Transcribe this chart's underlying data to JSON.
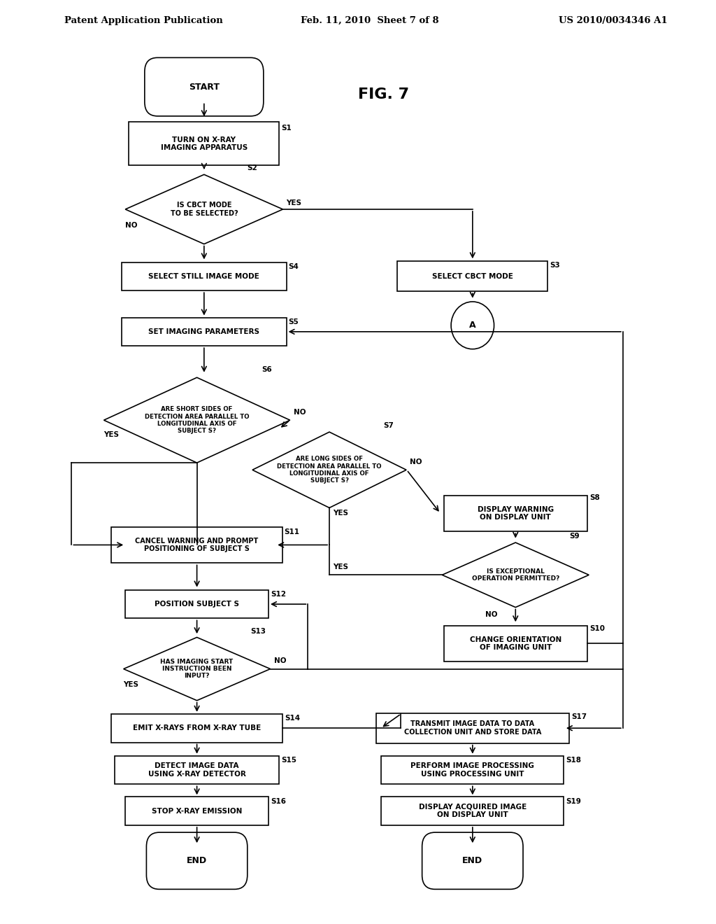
{
  "bg_color": "#ffffff",
  "header_left": "Patent Application Publication",
  "header_mid": "Feb. 11, 2010  Sheet 7 of 8",
  "header_right": "US 2010/0034346 A1",
  "fig_label": "FIG. 7"
}
